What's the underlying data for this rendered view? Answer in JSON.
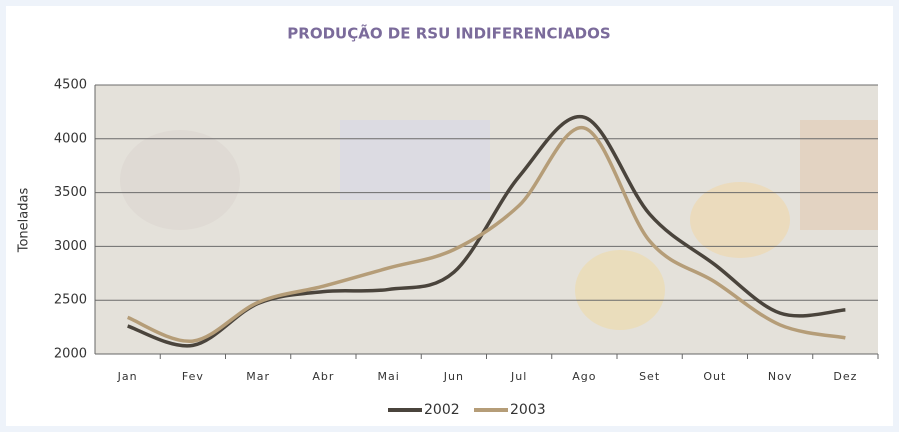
{
  "chart_data": {
    "type": "line",
    "title": "PRODUÇÃO DE RSU INDIFERENCIADOS",
    "y_label": "Toneladas",
    "categories": [
      "Jan",
      "Fev",
      "Mar",
      "Abr",
      "Mai",
      "Jun",
      "Jul",
      "Ago",
      "Set",
      "Out",
      "Nov",
      "Dez"
    ],
    "series": [
      {
        "name": "2002",
        "color": "#4a443c",
        "values": [
          2260,
          2080,
          2470,
          2580,
          2600,
          2760,
          3650,
          4200,
          3300,
          2830,
          2380,
          2410
        ]
      },
      {
        "name": "2003",
        "color": "#b59d78",
        "values": [
          2340,
          2120,
          2480,
          2630,
          2800,
          2970,
          3380,
          4100,
          3050,
          2670,
          2270,
          2150
        ]
      }
    ],
    "ylim": [
      2000,
      4500
    ],
    "yticks": [
      2000,
      2500,
      3000,
      3500,
      4000,
      4500
    ],
    "grid": true,
    "legend": "bottom"
  }
}
